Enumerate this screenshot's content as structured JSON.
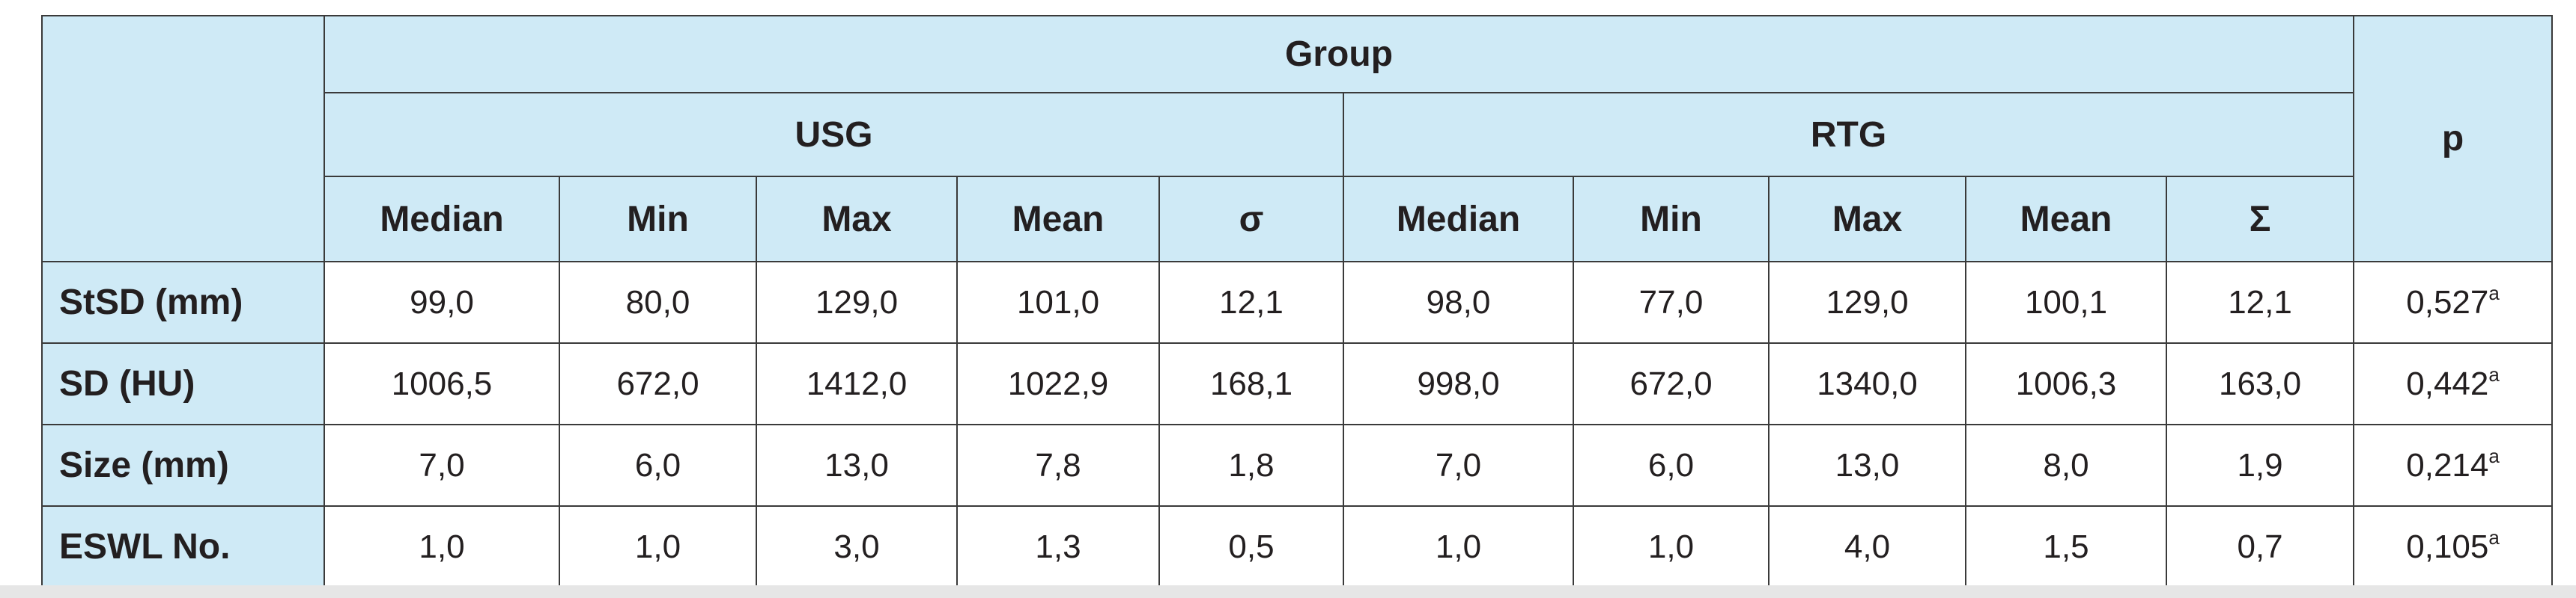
{
  "table": {
    "header": {
      "group": "Group",
      "p": "p",
      "groups": [
        "USG",
        "RTG"
      ],
      "columns": [
        "Median",
        "Min",
        "Max",
        "Mean",
        "σ",
        "Median",
        "Min",
        "Max",
        "Mean",
        "Σ"
      ]
    },
    "rows": [
      {
        "label": "StSD (mm)",
        "values": [
          "99,0",
          "80,0",
          "129,0",
          "101,0",
          "12,1",
          "98,0",
          "77,0",
          "129,0",
          "100,1",
          "12,1"
        ],
        "p": "0,527",
        "p_note": "a"
      },
      {
        "label": "SD (HU)",
        "values": [
          "1006,5",
          "672,0",
          "1412,0",
          "1022,9",
          "168,1",
          "998,0",
          "672,0",
          "1340,0",
          "1006,3",
          "163,0"
        ],
        "p": "0,442",
        "p_note": "a"
      },
      {
        "label": "Size (mm)",
        "values": [
          "7,0",
          "6,0",
          "13,0",
          "7,8",
          "1,8",
          "7,0",
          "6,0",
          "13,0",
          "8,0",
          "1,9"
        ],
        "p": "0,214",
        "p_note": "a"
      },
      {
        "label": "ESWL No.",
        "values": [
          "1,0",
          "1,0",
          "3,0",
          "1,3",
          "0,5",
          "1,0",
          "1,0",
          "4,0",
          "1,5",
          "0,7"
        ],
        "p": "0,105",
        "p_note": "a"
      }
    ]
  }
}
